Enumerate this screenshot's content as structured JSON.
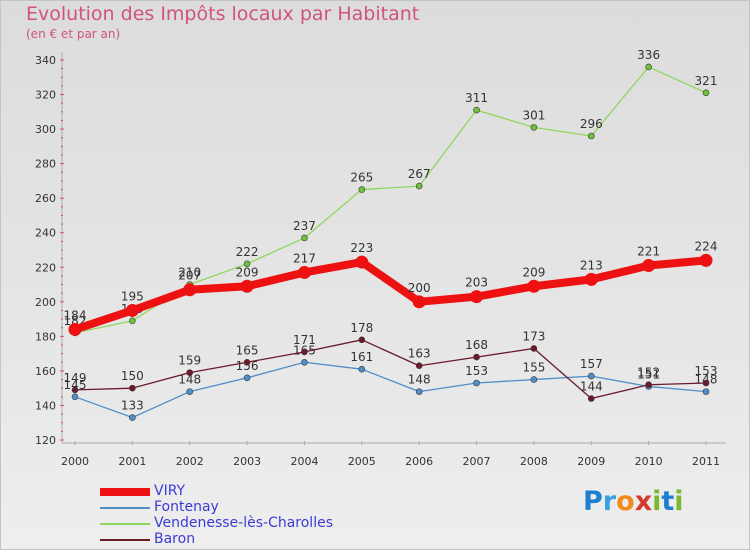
{
  "header": {
    "title": "Evolution des Impôts locaux par Habitant",
    "subtitle": "(en € et par an)"
  },
  "logo": {
    "letters": [
      "P",
      "r",
      "o",
      "x",
      "i",
      "t",
      "i"
    ],
    "colors": [
      "#1e7fd0",
      "#3aa0e0",
      "#f28a1c",
      "#d63a2e",
      "#7cb82f",
      "#1e7fd0",
      "#7cb82f"
    ]
  },
  "chart_data": {
    "type": "line",
    "title": "Evolution des Impôts locaux par Habitant",
    "subtitle": "(en € et par an)",
    "x": [
      "2000",
      "2001",
      "2002",
      "2003",
      "2004",
      "2005",
      "2006",
      "2007",
      "2008",
      "2009",
      "2010",
      "2011"
    ],
    "ylim": [
      120,
      340
    ],
    "yticks": [
      120,
      140,
      160,
      180,
      200,
      220,
      240,
      260,
      280,
      300,
      320,
      340
    ],
    "grid": false,
    "legend": "bottom-left",
    "series": [
      {
        "name": "Vendenesse-lès-Charolles",
        "color": "#8fd65c",
        "marker": "#6cc23a",
        "weight": "thin",
        "values": [
          182,
          189,
          210,
          222,
          237,
          265,
          267,
          311,
          301,
          296,
          336,
          321
        ],
        "labels": [
          "182",
          "189",
          "210",
          "222",
          "237",
          "265",
          "267",
          "311",
          "301",
          "296",
          "336",
          "321"
        ]
      },
      {
        "name": "Fontenay",
        "color": "#4f8ec9",
        "marker": "#4f8ec9",
        "weight": "thin",
        "values": [
          145,
          133,
          148,
          156,
          165,
          161,
          148,
          153,
          155,
          157,
          151,
          148
        ],
        "labels": [
          "145",
          "133",
          "148",
          "156",
          "165",
          "161",
          "148",
          "153",
          "155",
          "157",
          "151",
          "148"
        ]
      },
      {
        "name": "Baron",
        "color": "#6b1a2a",
        "marker": "#6b1a2a",
        "weight": "thin",
        "values": [
          149,
          150,
          159,
          165,
          171,
          178,
          163,
          168,
          173,
          144,
          152,
          153
        ],
        "labels": [
          "149",
          "150",
          "159",
          "165",
          "171",
          "178",
          "163",
          "168",
          "173",
          "144",
          "152",
          "153"
        ]
      },
      {
        "name": "VIRY",
        "color": "#ee1111",
        "marker": "#ee1111",
        "weight": "thick",
        "values": [
          184,
          195,
          207,
          209,
          217,
          223,
          200,
          203,
          209,
          213,
          221,
          224
        ],
        "labels": [
          "184",
          "195",
          "207",
          "209",
          "217",
          "223",
          "200",
          "203",
          "209",
          "213",
          "221",
          "224"
        ]
      }
    ]
  },
  "legend": {
    "items": [
      {
        "label": "VIRY",
        "color": "#ee1111",
        "weight": "thick"
      },
      {
        "label": "Fontenay",
        "color": "#4f8ec9",
        "weight": "thin"
      },
      {
        "label": "Vendenesse-lès-Charolles",
        "color": "#8fd65c",
        "weight": "thin"
      },
      {
        "label": "Baron",
        "color": "#6b1a2a",
        "weight": "thin"
      }
    ]
  }
}
